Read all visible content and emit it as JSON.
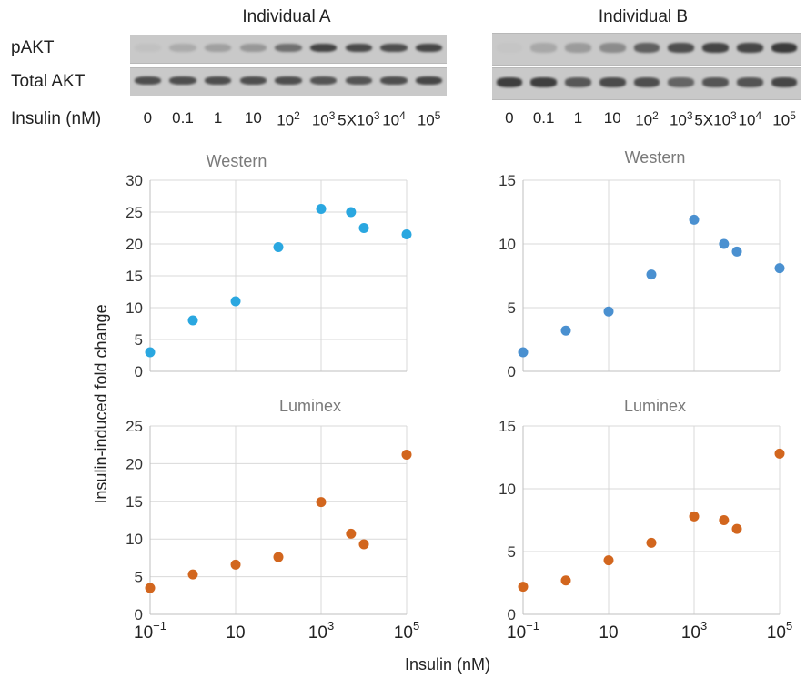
{
  "blots": [
    {
      "title": "Individual A",
      "rows": [
        "pAKT",
        "Total AKT"
      ],
      "lanes_label": "Insulin (nM)",
      "lanes": [
        "0",
        "0.1",
        "1",
        "10",
        "10^2",
        "10^3",
        "5X10^3",
        "10^4",
        "10^5"
      ],
      "band_intensity": {
        "pAKT": [
          0.05,
          0.18,
          0.25,
          0.3,
          0.55,
          0.82,
          0.78,
          0.75,
          0.8
        ],
        "Total AKT": [
          0.75,
          0.75,
          0.75,
          0.75,
          0.75,
          0.72,
          0.72,
          0.75,
          0.8
        ]
      }
    },
    {
      "title": "Individual B",
      "lanes": [
        "0",
        "0.1",
        "1",
        "10",
        "10^2",
        "10^3",
        "5X10^3",
        "10^4",
        "10^5"
      ],
      "band_intensity": {
        "pAKT": [
          0.02,
          0.2,
          0.28,
          0.38,
          0.65,
          0.75,
          0.82,
          0.8,
          0.88
        ],
        "Total AKT": [
          0.85,
          0.85,
          0.7,
          0.78,
          0.75,
          0.62,
          0.72,
          0.72,
          0.8
        ]
      }
    }
  ],
  "chart_data": [
    {
      "type": "scatter",
      "title": "Western",
      "x": [
        0.1,
        1,
        10,
        100,
        1000,
        5000,
        10000,
        100000
      ],
      "y": [
        3,
        8,
        11,
        19.5,
        25.5,
        25,
        22.5,
        21.5
      ],
      "xscale": "log",
      "xlim": [
        0.1,
        100000
      ],
      "ylim": [
        0,
        30
      ],
      "yticks": [
        0,
        5,
        10,
        15,
        20,
        25,
        30
      ],
      "color": "#2aa7e0"
    },
    {
      "type": "scatter",
      "title": "Western",
      "x": [
        0.1,
        1,
        10,
        100,
        1000,
        5000,
        10000,
        100000
      ],
      "y": [
        1.5,
        3.2,
        4.7,
        7.6,
        11.9,
        10,
        9.4,
        8.1
      ],
      "xscale": "log",
      "xlim": [
        0.1,
        100000
      ],
      "ylim": [
        0,
        15
      ],
      "yticks": [
        0,
        5,
        10,
        15
      ],
      "color": "#4a90d0"
    },
    {
      "type": "scatter",
      "title": "Luminex",
      "x": [
        0.1,
        1,
        10,
        100,
        1000,
        5000,
        10000,
        100000
      ],
      "y": [
        3.5,
        5.3,
        6.6,
        7.6,
        14.9,
        10.7,
        9.3,
        21.2
      ],
      "xscale": "log",
      "xlim": [
        0.1,
        100000
      ],
      "ylim": [
        0,
        25
      ],
      "yticks": [
        0,
        5,
        10,
        15,
        20,
        25
      ],
      "xticks": [
        "10^-1",
        "10",
        "10^3",
        "10^5"
      ],
      "color": "#d2661e"
    },
    {
      "type": "scatter",
      "title": "Luminex",
      "x": [
        0.1,
        1,
        10,
        100,
        1000,
        5000,
        10000,
        100000
      ],
      "y": [
        2.2,
        2.7,
        4.3,
        5.7,
        7.8,
        7.5,
        6.8,
        12.8
      ],
      "xscale": "log",
      "xlim": [
        0.1,
        100000
      ],
      "ylim": [
        0,
        15
      ],
      "yticks": [
        0,
        5,
        10,
        15
      ],
      "xticks": [
        "10^-1",
        "10",
        "10^3",
        "10^5"
      ],
      "color": "#d2661e"
    }
  ],
  "ylabel": "Insulin-induced fold change",
  "xlabel": "Insulin (nM)"
}
